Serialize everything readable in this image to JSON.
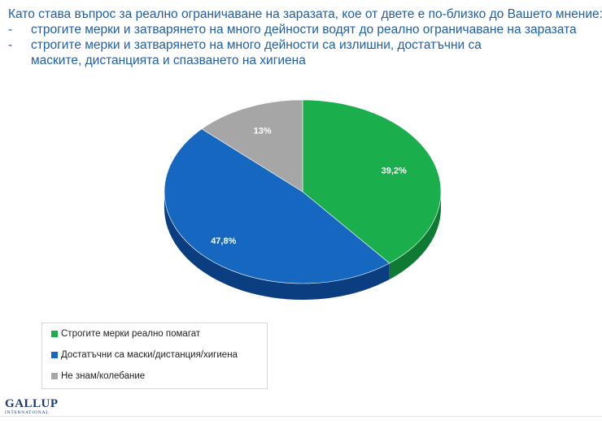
{
  "heading": {
    "question": "Като става въпрос за реално ограничаване на заразата, кое от двете е по-близко до Вашето мнение:",
    "bullet_mark": "-",
    "bullets": [
      "строгите мерки и затварянето на много дейности водят до реално ограничаване на заразата",
      "строгите мерки и затварянето на много дейности са излишни, достатъчни са маските, дистанцията и спазването на хигиена"
    ]
  },
  "chart_data": {
    "type": "pie",
    "title": "",
    "categories": [
      "Строгите мерки реално помагат",
      "Достатъчни са маски/дистанция/хигиена",
      "Не знам/колебание"
    ],
    "values": [
      39.2,
      47.8,
      13
    ],
    "labels": [
      "39,2%",
      "47,8%",
      "13%"
    ],
    "colors": [
      "#1aae4c",
      "#1667c0",
      "#a6a6a6"
    ],
    "side_colors": [
      "#0f7a33",
      "#0b3e80",
      "#6e6e6e"
    ],
    "legend_position": "bottom-left"
  },
  "logo": {
    "name": "GALLUP",
    "sub": "INTERNATIONAL"
  }
}
